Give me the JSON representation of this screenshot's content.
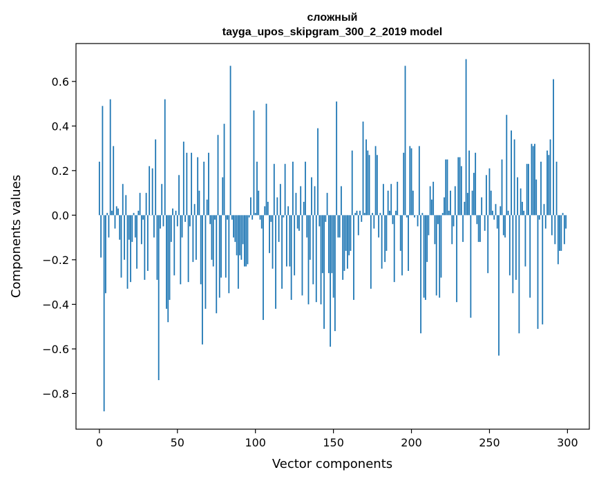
{
  "chart_data": {
    "type": "bar",
    "title": "сложный",
    "subtitle": "tayga_upos_skipgram_300_2_2019 model",
    "xlabel": "Vector components",
    "ylabel": "Components values",
    "xlim": [
      -15,
      314
    ],
    "ylim": [
      -0.96,
      0.77
    ],
    "xticks": [
      0,
      50,
      100,
      150,
      200,
      250,
      300
    ],
    "xtick_labels": [
      "0",
      "50",
      "100",
      "150",
      "200",
      "250",
      "300"
    ],
    "yticks": [
      -0.8,
      -0.6,
      -0.4,
      -0.2,
      0.0,
      0.2,
      0.4,
      0.6
    ],
    "ytick_labels": [
      "−0.8",
      "−0.6",
      "−0.4",
      "−0.2",
      "0.0",
      "0.2",
      "0.4",
      "0.6"
    ],
    "bar_color": "#1f77b4",
    "grid": false,
    "legend": "none",
    "x": [
      0,
      1,
      2,
      3,
      4,
      5,
      6,
      7,
      8,
      9,
      10,
      11,
      12,
      13,
      14,
      15,
      16,
      17,
      18,
      19,
      20,
      21,
      22,
      23,
      24,
      25,
      26,
      27,
      28,
      29,
      30,
      31,
      32,
      33,
      34,
      35,
      36,
      37,
      38,
      39,
      40,
      41,
      42,
      43,
      44,
      45,
      46,
      47,
      48,
      49,
      50,
      51,
      52,
      53,
      54,
      55,
      56,
      57,
      58,
      59,
      60,
      61,
      62,
      63,
      64,
      65,
      66,
      67,
      68,
      69,
      70,
      71,
      72,
      73,
      74,
      75,
      76,
      77,
      78,
      79,
      80,
      81,
      82,
      83,
      84,
      85,
      86,
      87,
      88,
      89,
      90,
      91,
      92,
      93,
      94,
      95,
      96,
      97,
      98,
      99,
      100,
      101,
      102,
      103,
      104,
      105,
      106,
      107,
      108,
      109,
      110,
      111,
      112,
      113,
      114,
      115,
      116,
      117,
      118,
      119,
      120,
      121,
      122,
      123,
      124,
      125,
      126,
      127,
      128,
      129,
      130,
      131,
      132,
      133,
      134,
      135,
      136,
      137,
      138,
      139,
      140,
      141,
      142,
      143,
      144,
      145,
      146,
      147,
      148,
      149,
      150,
      151,
      152,
      153,
      154,
      155,
      156,
      157,
      158,
      159,
      160,
      161,
      162,
      163,
      164,
      165,
      166,
      167,
      168,
      169,
      170,
      171,
      172,
      173,
      174,
      175,
      176,
      177,
      178,
      179,
      180,
      181,
      182,
      183,
      184,
      185,
      186,
      187,
      188,
      189,
      190,
      191,
      192,
      193,
      194,
      195,
      196,
      197,
      198,
      199,
      200,
      201,
      202,
      203,
      204,
      205,
      206,
      207,
      208,
      209,
      210,
      211,
      212,
      213,
      214,
      215,
      216,
      217,
      218,
      219,
      220,
      221,
      222,
      223,
      224,
      225,
      226,
      227,
      228,
      229,
      230,
      231,
      232,
      233,
      234,
      235,
      236,
      237,
      238,
      239,
      240,
      241,
      242,
      243,
      244,
      245,
      246,
      247,
      248,
      249,
      250,
      251,
      252,
      253,
      254,
      255,
      256,
      257,
      258,
      259,
      260,
      261,
      262,
      263,
      264,
      265,
      266,
      267,
      268,
      269,
      270,
      271,
      272,
      273,
      274,
      275,
      276,
      277,
      278,
      279,
      280,
      281,
      282,
      283,
      284,
      285,
      286,
      287,
      288,
      289,
      290,
      291,
      292,
      293,
      294,
      295,
      296,
      297,
      298,
      299
    ],
    "values": [
      0.24,
      -0.19,
      0.49,
      -0.88,
      -0.35,
      0.01,
      -0.1,
      0.52,
      0.02,
      0.31,
      -0.06,
      0.04,
      0.03,
      -0.11,
      -0.28,
      0.14,
      -0.2,
      0.09,
      -0.33,
      -0.11,
      -0.3,
      -0.12,
      0.01,
      -0.1,
      -0.24,
      0.02,
      0.1,
      -0.13,
      -0.02,
      -0.29,
      0.1,
      -0.25,
      0.22,
      0.0,
      0.21,
      -0.1,
      0.34,
      -0.29,
      -0.74,
      -0.06,
      0.14,
      -0.05,
      0.52,
      -0.42,
      -0.48,
      -0.38,
      -0.12,
      0.03,
      -0.27,
      0.02,
      -0.05,
      0.18,
      -0.31,
      -0.1,
      0.33,
      -0.03,
      0.28,
      -0.3,
      -0.05,
      0.28,
      -0.21,
      0.05,
      -0.2,
      0.26,
      0.11,
      -0.31,
      -0.58,
      0.24,
      -0.42,
      0.07,
      0.28,
      -0.04,
      -0.2,
      -0.23,
      -0.02,
      -0.44,
      0.36,
      -0.37,
      -0.28,
      0.17,
      0.41,
      -0.28,
      -0.02,
      -0.35,
      0.67,
      -0.02,
      -0.1,
      -0.12,
      -0.18,
      -0.33,
      -0.18,
      -0.2,
      -0.13,
      -0.23,
      -0.23,
      -0.22,
      -0.01,
      0.08,
      -0.02,
      0.47,
      0.01,
      0.24,
      0.11,
      -0.02,
      -0.06,
      -0.47,
      0.04,
      0.5,
      0.06,
      -0.17,
      -0.03,
      -0.24,
      0.23,
      -0.42,
      0.08,
      -0.12,
      0.14,
      -0.33,
      -0.01,
      0.23,
      -0.23,
      0.04,
      -0.23,
      -0.38,
      0.24,
      -0.27,
      0.1,
      -0.06,
      -0.07,
      0.13,
      -0.36,
      0.06,
      0.24,
      -0.1,
      -0.4,
      -0.2,
      0.17,
      -0.31,
      0.13,
      -0.39,
      0.39,
      -0.05,
      -0.4,
      -0.26,
      -0.51,
      -0.03,
      0.1,
      -0.26,
      -0.59,
      -0.26,
      -0.37,
      -0.52,
      0.51,
      -0.1,
      -0.1,
      0.13,
      -0.29,
      -0.25,
      -0.16,
      -0.24,
      -0.18,
      -0.16,
      0.29,
      -0.38,
      0.01,
      0.02,
      -0.09,
      0.02,
      -0.03,
      0.42,
      0.01,
      0.34,
      0.29,
      0.27,
      -0.33,
      0.01,
      -0.06,
      0.31,
      0.27,
      -0.1,
      0.01,
      -0.24,
      0.14,
      -0.21,
      -0.16,
      0.11,
      0.02,
      0.14,
      -0.04,
      -0.3,
      0.02,
      0.15,
      0.0,
      -0.16,
      -0.27,
      0.28,
      0.67,
      -0.01,
      -0.25,
      0.31,
      0.3,
      0.11,
      -0.01,
      0.0,
      -0.05,
      0.31,
      -0.53,
      0.01,
      -0.37,
      -0.38,
      -0.21,
      -0.09,
      0.13,
      0.07,
      0.15,
      -0.13,
      -0.36,
      -0.04,
      -0.37,
      -0.28,
      0.01,
      0.08,
      0.25,
      0.25,
      0.02,
      0.11,
      -0.13,
      -0.05,
      0.13,
      -0.39,
      0.26,
      0.26,
      0.22,
      -0.12,
      0.06,
      0.7,
      0.1,
      0.29,
      -0.46,
      0.11,
      0.19,
      0.28,
      -0.04,
      -0.12,
      -0.12,
      0.08,
      0.0,
      -0.07,
      0.18,
      -0.26,
      0.21,
      0.11,
      0.02,
      -0.02,
      0.05,
      -0.06,
      -0.63,
      0.04,
      0.25,
      -0.09,
      -0.1,
      0.45,
      0.02,
      -0.27,
      0.38,
      -0.35,
      0.34,
      -0.29,
      0.17,
      -0.53,
      0.12,
      0.06,
      0.02,
      -0.23,
      0.23,
      0.23,
      -0.37,
      0.32,
      0.31,
      0.32,
      0.16,
      -0.51,
      -0.02,
      0.24,
      -0.49,
      0.05,
      -0.06,
      0.29,
      0.27,
      0.34,
      -0.09,
      0.61,
      -0.13,
      0.24,
      -0.22,
      -0.16,
      -0.16,
      0.01,
      -0.13,
      -0.06
    ]
  }
}
